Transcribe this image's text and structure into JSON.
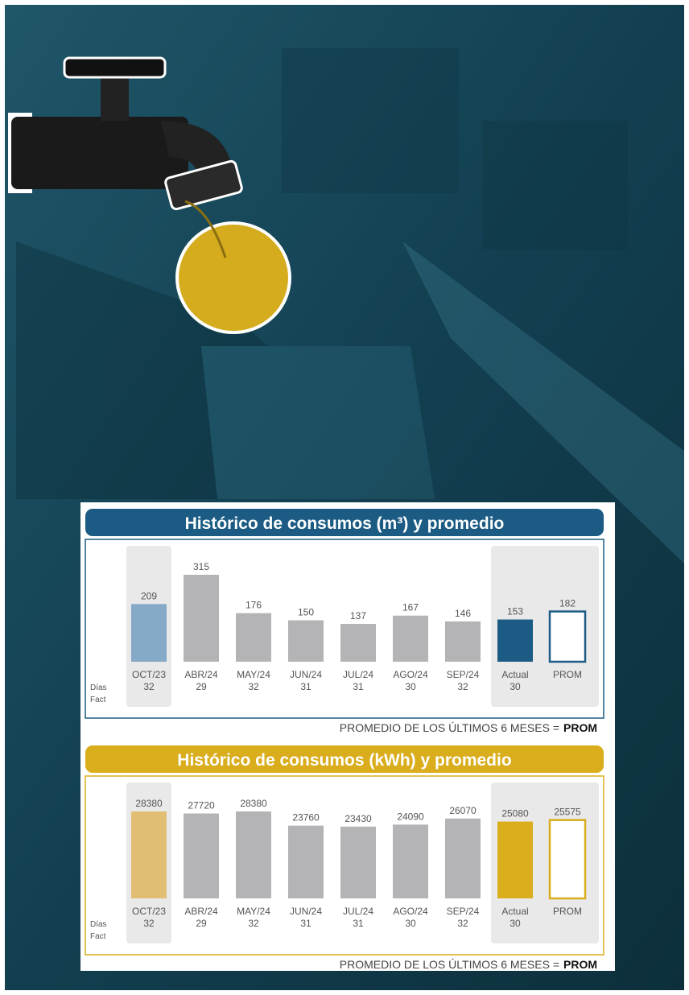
{
  "chart_data": [
    {
      "type": "bar",
      "title": "Histórico de consumos (m³) y promedio",
      "title_color": "#1b5b84",
      "categories": [
        "OCT/23",
        "ABR/24",
        "MAY/24",
        "JUN/24",
        "JUL/24",
        "AGO/24",
        "SEP/24",
        "Actual",
        "PROM"
      ],
      "values": [
        209,
        315,
        176,
        150,
        137,
        167,
        146,
        153,
        182
      ],
      "colors": [
        "#86a9c8",
        "#b4b4b6",
        "#b4b4b6",
        "#b4b4b6",
        "#b4b4b6",
        "#b4b4b6",
        "#b4b4b6",
        "#1b5b84",
        "#ffffff"
      ],
      "days_label": [
        "Días",
        "Fact"
      ],
      "days": [
        32,
        29,
        32,
        31,
        31,
        30,
        32,
        30,
        null
      ],
      "footer": "PROMEDIO DE LOS ÚLTIMOS 6 MESES =",
      "footer_bold": "PROM"
    },
    {
      "type": "bar",
      "title": "Histórico de consumos (kWh) y promedio",
      "title_color": "#d9ad1c",
      "categories": [
        "OCT/23",
        "ABR/24",
        "MAY/24",
        "JUN/24",
        "JUL/24",
        "AGO/24",
        "SEP/24",
        "Actual",
        "PROM"
      ],
      "values": [
        28380,
        27720,
        28380,
        23760,
        23430,
        24090,
        26070,
        25080,
        25575
      ],
      "colors": [
        "#e2bd74",
        "#b4b4b6",
        "#b4b4b6",
        "#b4b4b6",
        "#b4b4b6",
        "#b4b4b6",
        "#b4b4b6",
        "#d9ad1c",
        "#ffffff"
      ],
      "days_label": [
        "Días",
        "Fact"
      ],
      "days": [
        32,
        29,
        32,
        31,
        31,
        30,
        32,
        30,
        null
      ],
      "footer": "PROMEDIO DE LOS ÚLTIMOS 6 MESES =",
      "footer_bold": "PROM"
    }
  ]
}
